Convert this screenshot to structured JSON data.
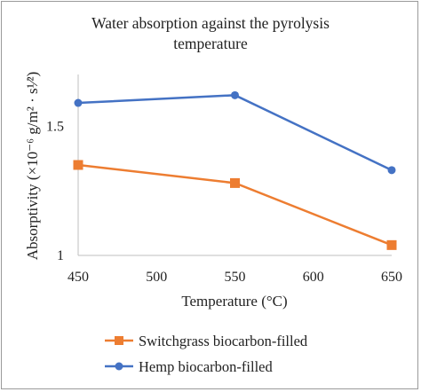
{
  "chart_data": {
    "type": "line",
    "title_line1": "Water absorption against the pyrolysis",
    "title_line2": "temperature",
    "xlabel": "Temperature (°C)",
    "ylabel": "Absorptivity (×10⁻⁶ g/m² · s¹⁄²)",
    "xlim": [
      450,
      650
    ],
    "ylim": [
      1,
      1.7
    ],
    "x_ticks": [
      450,
      500,
      550,
      600,
      650
    ],
    "x_tick_labels": [
      "450",
      "500",
      "550",
      "600",
      "650"
    ],
    "y_ticks": [
      1,
      1.5
    ],
    "y_tick_labels": [
      "1",
      "1.5"
    ],
    "grid": false,
    "legend_position": "bottom",
    "series": [
      {
        "name": "Switchgrass biocarbon-filled",
        "color": "#ed7d31",
        "marker": "square",
        "x": [
          450,
          550,
          650
        ],
        "values": [
          1.35,
          1.28,
          1.04
        ]
      },
      {
        "name": "Hemp biocarbon-filled",
        "color": "#4472c4",
        "marker": "circle",
        "x": [
          450,
          550,
          650
        ],
        "values": [
          1.59,
          1.62,
          1.33
        ]
      }
    ]
  }
}
